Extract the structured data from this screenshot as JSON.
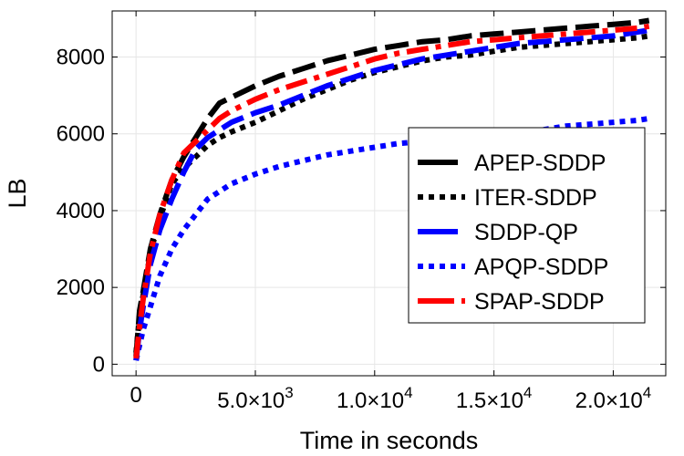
{
  "chart_data": {
    "type": "line",
    "title": "",
    "xlabel": "Time in seconds",
    "ylabel": "LB",
    "xlim": [
      -1000,
      22200
    ],
    "ylim": [
      -300,
      9200
    ],
    "grid": true,
    "legend_position": "center-right",
    "x_ticks": [
      {
        "value": 0,
        "mantissa": "0",
        "exponent": ""
      },
      {
        "value": 5000,
        "mantissa": "5.0×10",
        "exponent": "3"
      },
      {
        "value": 10000,
        "mantissa": "1.0×10",
        "exponent": "4"
      },
      {
        "value": 15000,
        "mantissa": "1.5×10",
        "exponent": "4"
      },
      {
        "value": 20000,
        "mantissa": "2.0×10",
        "exponent": "4"
      }
    ],
    "y_ticks": [
      {
        "value": 0,
        "label": "0"
      },
      {
        "value": 2000,
        "label": "2000"
      },
      {
        "value": 4000,
        "label": "4000"
      },
      {
        "value": 6000,
        "label": "6000"
      },
      {
        "value": 8000,
        "label": "8000"
      }
    ],
    "series": [
      {
        "name": "APEP-SDDP",
        "color": "#000000",
        "dash": "long",
        "x": [
          0,
          150,
          300,
          600,
          1000,
          1500,
          2000,
          2500,
          3000,
          3500,
          4000,
          5000,
          6000,
          7000,
          8000,
          9000,
          10000,
          11000,
          12000,
          13000,
          14000,
          15000,
          16000,
          17000,
          18000,
          19000,
          20000,
          21000,
          21500
        ],
        "y": [
          200,
          1400,
          1900,
          3000,
          3900,
          4800,
          5400,
          5900,
          6400,
          6800,
          6950,
          7250,
          7500,
          7700,
          7900,
          8050,
          8200,
          8300,
          8400,
          8450,
          8550,
          8600,
          8650,
          8700,
          8750,
          8800,
          8850,
          8900,
          8950
        ]
      },
      {
        "name": "ITER-SDDP",
        "color": "#000000",
        "dash": "dot",
        "x": [
          0,
          150,
          300,
          600,
          1000,
          1500,
          2000,
          2500,
          3000,
          3500,
          4000,
          5000,
          6000,
          7000,
          8000,
          9000,
          10000,
          11000,
          12000,
          13000,
          14000,
          15000,
          16000,
          17000,
          18000,
          19000,
          20000,
          21000,
          21500
        ],
        "y": [
          300,
          1300,
          1800,
          2900,
          3800,
          4700,
          5100,
          5400,
          5700,
          5900,
          6050,
          6300,
          6600,
          6900,
          7150,
          7400,
          7600,
          7750,
          7900,
          8000,
          8050,
          8150,
          8250,
          8300,
          8350,
          8400,
          8450,
          8500,
          8550
        ]
      },
      {
        "name": "SDDP-QP",
        "color": "#0000ff",
        "dash": "long",
        "x": [
          0,
          150,
          300,
          600,
          1000,
          1500,
          2000,
          2500,
          3000,
          3500,
          4000,
          5000,
          6000,
          7000,
          8000,
          9000,
          10000,
          11000,
          12000,
          13000,
          14000,
          15000,
          16000,
          17000,
          18000,
          19000,
          20000,
          21000,
          21500
        ],
        "y": [
          100,
          900,
          1500,
          2600,
          3500,
          4300,
          5000,
          5600,
          5900,
          6100,
          6300,
          6550,
          6750,
          7000,
          7250,
          7450,
          7650,
          7800,
          7950,
          8050,
          8150,
          8250,
          8350,
          8400,
          8450,
          8500,
          8550,
          8650,
          8700
        ]
      },
      {
        "name": "APQP-SDDP",
        "color": "#0000ff",
        "dash": "dot",
        "x": [
          0,
          150,
          300,
          600,
          1000,
          1500,
          2000,
          2500,
          3000,
          3500,
          4000,
          5000,
          6000,
          7000,
          8000,
          9000,
          10000,
          11000,
          12000,
          13000,
          14000,
          15000,
          16000,
          17000,
          18000,
          19000,
          20000,
          21000,
          21500
        ],
        "y": [
          100,
          500,
          900,
          1500,
          2300,
          3000,
          3500,
          3900,
          4300,
          4500,
          4700,
          4950,
          5150,
          5300,
          5450,
          5550,
          5650,
          5750,
          5800,
          5900,
          5950,
          6000,
          6050,
          6100,
          6200,
          6250,
          6300,
          6350,
          6400
        ]
      },
      {
        "name": "SPAP-SDDP",
        "color": "#ff0000",
        "dash": "dashdot",
        "x": [
          0,
          150,
          300,
          600,
          1000,
          1500,
          2000,
          2500,
          3000,
          3500,
          4000,
          5000,
          6000,
          7000,
          8000,
          9000,
          10000,
          11000,
          12000,
          13000,
          14000,
          15000,
          16000,
          17000,
          18000,
          19000,
          20000,
          21000,
          21500
        ],
        "y": [
          150,
          1000,
          1700,
          2900,
          3900,
          4800,
          5500,
          5800,
          6100,
          6400,
          6600,
          6900,
          7150,
          7350,
          7550,
          7750,
          7950,
          8100,
          8200,
          8300,
          8400,
          8450,
          8500,
          8550,
          8600,
          8650,
          8700,
          8750,
          8800
        ]
      }
    ]
  }
}
